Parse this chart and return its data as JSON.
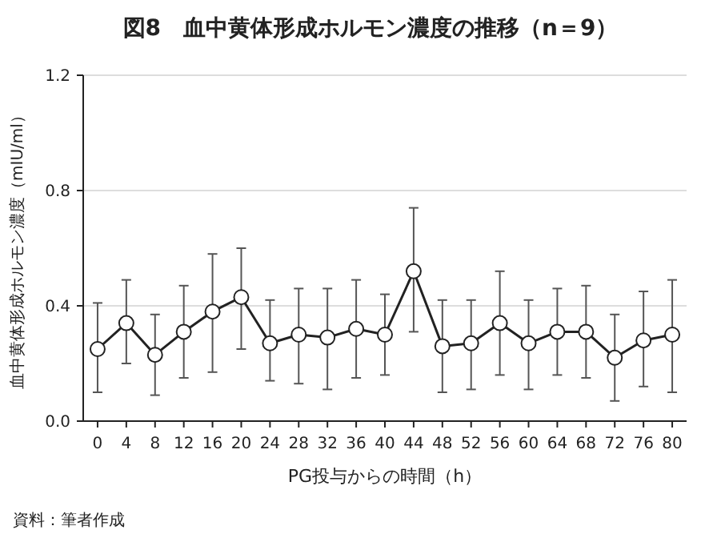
{
  "chart_data": {
    "type": "line",
    "title": "図8　血中黄体形成ホルモン濃度の推移（n＝9）",
    "xlabel": "PG投与からの時間（h）",
    "ylabel": "血中黄体形成ホルモン濃度（mIU/ml）",
    "annotations": [
      "資料：筆者作成"
    ],
    "x": [
      0,
      4,
      8,
      12,
      16,
      20,
      24,
      28,
      32,
      36,
      40,
      44,
      48,
      52,
      56,
      60,
      64,
      68,
      72,
      76,
      80
    ],
    "xlim": [
      -2,
      82
    ],
    "xticks": [
      0,
      4,
      8,
      12,
      16,
      20,
      24,
      28,
      32,
      36,
      40,
      44,
      48,
      52,
      56,
      60,
      64,
      68,
      72,
      76,
      80
    ],
    "series": [
      {
        "color": "#222222",
        "values": [
          0.25,
          0.34,
          0.23,
          0.31,
          0.38,
          0.43,
          0.27,
          0.3,
          0.29,
          0.32,
          0.3,
          0.52,
          0.26,
          0.27,
          0.34,
          0.27,
          0.31,
          0.31,
          0.22,
          0.28,
          0.3
        ],
        "errors": [
          [
            0.1,
            0.41
          ],
          [
            0.2,
            0.49
          ],
          [
            0.09,
            0.37
          ],
          [
            0.15,
            0.47
          ],
          [
            0.17,
            0.58
          ],
          [
            0.25,
            0.6
          ],
          [
            0.14,
            0.42
          ],
          [
            0.13,
            0.46
          ],
          [
            0.11,
            0.46
          ],
          [
            0.15,
            0.49
          ],
          [
            0.16,
            0.44
          ],
          [
            0.31,
            0.74
          ],
          [
            0.1,
            0.42
          ],
          [
            0.11,
            0.42
          ],
          [
            0.16,
            0.52
          ],
          [
            0.11,
            0.42
          ],
          [
            0.16,
            0.46
          ],
          [
            0.15,
            0.47
          ],
          [
            0.07,
            0.37
          ],
          [
            0.12,
            0.45
          ],
          [
            0.1,
            0.49
          ]
        ]
      }
    ],
    "ylim": [
      0,
      1.2
    ],
    "yticks": [
      {
        "value": 0,
        "label": "0.0"
      },
      0.4,
      0.8,
      1.2
    ],
    "grid": "y",
    "marker": "circle",
    "line_style": "solid"
  }
}
